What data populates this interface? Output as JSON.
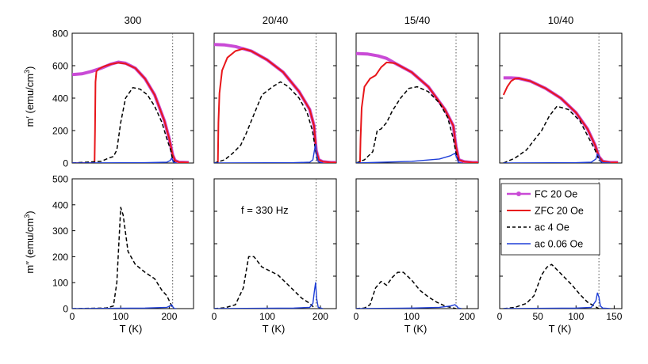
{
  "figure": {
    "top_ylabel": "m′ (emu/cm",
    "top_ylabel_sup": "3",
    "top_ylabel_end": ")",
    "bottom_ylabel": "m′′ (emu/cm",
    "bottom_ylabel_sup": "3",
    "bottom_ylabel_end": ")",
    "xlabel": "T (K)",
    "annotation": "f = 330 Hz"
  },
  "colors": {
    "FC": "#c94ad6",
    "ZFC": "#e8161a",
    "ac4": "#000000",
    "ac006": "#1f3fd8",
    "tc_line": "#555555"
  },
  "legend": [
    {
      "key": "FC",
      "label": "FC 20 Oe",
      "style": "marker-line"
    },
    {
      "key": "ZFC",
      "label": "ZFC 20 Oe",
      "style": "solid"
    },
    {
      "key": "ac4",
      "label": "ac 4 Oe",
      "style": "dashed"
    },
    {
      "key": "ac006",
      "label": "ac 0.06 Oe",
      "style": "solid"
    }
  ],
  "chart_data": [
    {
      "type": "line",
      "title": "300",
      "panel": "m′",
      "xlim": [
        0,
        250
      ],
      "ylim": [
        0,
        800
      ],
      "xticks": [],
      "yticks": [
        0,
        200,
        400,
        600,
        800
      ],
      "tc": 207,
      "series": [
        {
          "key": "FC",
          "x": [
            0,
            20,
            40,
            60,
            80,
            95,
            110,
            130,
            150,
            170,
            190,
            200,
            207,
            212,
            220,
            240
          ],
          "y": [
            545,
            550,
            565,
            585,
            610,
            622,
            615,
            585,
            520,
            420,
            260,
            150,
            50,
            15,
            5,
            3
          ]
        },
        {
          "key": "ZFC",
          "x": [
            0,
            46,
            47,
            48,
            50,
            55,
            65,
            80,
            95,
            110,
            130,
            150,
            170,
            190,
            200,
            207,
            212,
            220,
            240
          ],
          "y": [
            0,
            0,
            200,
            500,
            565,
            580,
            595,
            610,
            618,
            612,
            585,
            520,
            420,
            260,
            150,
            50,
            15,
            5,
            3
          ]
        },
        {
          "key": "ac4",
          "x": [
            0,
            60,
            75,
            85,
            92,
            100,
            110,
            125,
            140,
            155,
            170,
            185,
            195,
            203,
            207,
            212
          ],
          "y": [
            0,
            10,
            30,
            40,
            80,
            250,
            400,
            465,
            455,
            420,
            350,
            250,
            150,
            80,
            20,
            0
          ]
        },
        {
          "key": "ac006",
          "x": [
            0,
            150,
            195,
            202,
            205,
            208,
            210,
            215
          ],
          "y": [
            0,
            2,
            5,
            15,
            30,
            8,
            2,
            0
          ]
        }
      ]
    },
    {
      "type": "line",
      "title": "20/40",
      "panel": "m′",
      "xlim": [
        0,
        230
      ],
      "ylim": [
        0,
        800
      ],
      "xticks": [],
      "yticks": [],
      "tc": 192,
      "series": [
        {
          "key": "FC",
          "x": [
            0,
            20,
            40,
            70,
            100,
            130,
            160,
            180,
            188,
            192,
            197,
            205,
            220,
            230
          ],
          "y": [
            730,
            728,
            718,
            690,
            635,
            560,
            440,
            330,
            230,
            80,
            20,
            8,
            3,
            3
          ]
        },
        {
          "key": "ZFC",
          "x": [
            0,
            7,
            8,
            10,
            15,
            25,
            40,
            55,
            70,
            100,
            130,
            160,
            180,
            188,
            192,
            197,
            205,
            220,
            230
          ],
          "y": [
            0,
            0,
            250,
            430,
            570,
            650,
            690,
            705,
            690,
            635,
            560,
            440,
            330,
            230,
            80,
            20,
            8,
            3,
            3
          ]
        },
        {
          "key": "ac4",
          "x": [
            0,
            20,
            35,
            50,
            60,
            75,
            90,
            110,
            125,
            140,
            160,
            175,
            185,
            190,
            195
          ],
          "y": [
            0,
            20,
            60,
            110,
            180,
            300,
            420,
            470,
            500,
            470,
            400,
            310,
            200,
            100,
            0
          ]
        },
        {
          "key": "ac006",
          "x": [
            0,
            150,
            180,
            186,
            189,
            191,
            193,
            196,
            205
          ],
          "y": [
            0,
            2,
            5,
            20,
            80,
            115,
            50,
            8,
            0
          ]
        }
      ]
    },
    {
      "type": "line",
      "title": "15/40",
      "panel": "m′",
      "xlim": [
        0,
        220
      ],
      "ylim": [
        0,
        800
      ],
      "xticks": [],
      "yticks": [],
      "tc": 180,
      "series": [
        {
          "key": "FC",
          "x": [
            0,
            20,
            40,
            55,
            70,
            100,
            130,
            160,
            175,
            180,
            185,
            195,
            210,
            220
          ],
          "y": [
            675,
            672,
            660,
            645,
            615,
            560,
            470,
            330,
            230,
            100,
            20,
            8,
            3,
            3
          ]
        },
        {
          "key": "ZFC",
          "x": [
            0,
            7,
            8,
            10,
            15,
            25,
            35,
            45,
            55,
            70,
            100,
            130,
            160,
            175,
            180,
            185,
            195,
            210,
            220
          ],
          "y": [
            0,
            0,
            150,
            340,
            470,
            520,
            540,
            590,
            620,
            615,
            560,
            470,
            330,
            230,
            100,
            20,
            8,
            3,
            3
          ]
        },
        {
          "key": "ac4",
          "x": [
            0,
            15,
            30,
            38,
            45,
            55,
            65,
            80,
            95,
            110,
            130,
            150,
            165,
            175,
            180,
            185
          ],
          "y": [
            0,
            20,
            70,
            200,
            210,
            250,
            320,
            400,
            460,
            470,
            440,
            370,
            280,
            150,
            60,
            0
          ]
        },
        {
          "key": "ac006",
          "x": [
            0,
            100,
            150,
            170,
            178,
            181,
            184,
            190
          ],
          "y": [
            0,
            10,
            25,
            45,
            60,
            35,
            5,
            0
          ]
        }
      ]
    },
    {
      "type": "line",
      "title": "10/40",
      "panel": "m′",
      "xlim": [
        0,
        160
      ],
      "ylim": [
        0,
        800
      ],
      "xticks": [],
      "yticks": [],
      "tc": 130,
      "series": [
        {
          "key": "FC",
          "x": [
            5,
            15,
            25,
            40,
            60,
            80,
            100,
            115,
            125,
            130,
            135,
            145,
            155
          ],
          "y": [
            525,
            525,
            522,
            505,
            460,
            400,
            310,
            210,
            110,
            40,
            10,
            3,
            3
          ]
        },
        {
          "key": "ZFC",
          "x": [
            5,
            10,
            15,
            20,
            25,
            40,
            60,
            80,
            100,
            115,
            125,
            130,
            135,
            145,
            155
          ],
          "y": [
            420,
            470,
            505,
            520,
            522,
            505,
            460,
            400,
            310,
            210,
            110,
            40,
            10,
            3,
            3
          ]
        },
        {
          "key": "ac4",
          "x": [
            5,
            20,
            35,
            45,
            55,
            65,
            75,
            90,
            105,
            115,
            125,
            130,
            135
          ],
          "y": [
            0,
            30,
            80,
            140,
            200,
            290,
            350,
            330,
            260,
            170,
            80,
            20,
            0
          ]
        },
        {
          "key": "ac006",
          "x": [
            5,
            100,
            120,
            126,
            128,
            130,
            132,
            135,
            145
          ],
          "y": [
            0,
            2,
            5,
            25,
            55,
            45,
            10,
            2,
            0
          ]
        }
      ]
    },
    {
      "type": "line",
      "title": "",
      "panel": "m′′",
      "xlim": [
        0,
        250
      ],
      "ylim": [
        0,
        500
      ],
      "xticks": [
        0,
        100,
        200
      ],
      "yticks": [
        0,
        100,
        200,
        300,
        400,
        500
      ],
      "tc": 207,
      "series": [
        {
          "key": "ac4",
          "x": [
            0,
            70,
            85,
            92,
            100,
            105,
            115,
            130,
            150,
            170,
            185,
            195,
            205,
            210
          ],
          "y": [
            0,
            2,
            10,
            100,
            390,
            360,
            220,
            170,
            140,
            115,
            70,
            50,
            10,
            0
          ]
        },
        {
          "key": "ac006",
          "x": [
            0,
            150,
            195,
            202,
            205,
            208,
            211,
            215
          ],
          "y": [
            0,
            2,
            5,
            10,
            15,
            5,
            0,
            0
          ]
        }
      ]
    },
    {
      "type": "line",
      "title": "",
      "panel": "m′′",
      "xlim": [
        0,
        230
      ],
      "ylim": [
        0,
        500
      ],
      "xticks": [
        0,
        100,
        200
      ],
      "yticks": [],
      "tc": 192,
      "series": [
        {
          "key": "ac4",
          "x": [
            0,
            20,
            40,
            55,
            65,
            75,
            90,
            105,
            120,
            135,
            150,
            165,
            180,
            190
          ],
          "y": [
            0,
            3,
            15,
            80,
            200,
            200,
            160,
            145,
            130,
            100,
            70,
            40,
            20,
            0
          ]
        },
        {
          "key": "ac006",
          "x": [
            0,
            150,
            180,
            186,
            189,
            191,
            193,
            196,
            205
          ],
          "y": [
            0,
            2,
            5,
            20,
            70,
            100,
            40,
            5,
            0
          ]
        }
      ]
    },
    {
      "type": "line",
      "title": "",
      "panel": "m′′",
      "xlim": [
        0,
        220
      ],
      "ylim": [
        0,
        500
      ],
      "xticks": [
        0,
        100,
        200
      ],
      "yticks": [],
      "tc": 180,
      "series": [
        {
          "key": "ac4",
          "x": [
            0,
            15,
            25,
            35,
            45,
            55,
            65,
            75,
            85,
            100,
            115,
            130,
            145,
            160,
            170,
            180
          ],
          "y": [
            0,
            2,
            15,
            80,
            105,
            90,
            120,
            140,
            140,
            110,
            70,
            45,
            25,
            10,
            5,
            0
          ]
        },
        {
          "key": "ac006",
          "x": [
            0,
            100,
            150,
            170,
            178,
            181,
            184,
            190
          ],
          "y": [
            0,
            2,
            5,
            10,
            15,
            10,
            2,
            0
          ]
        }
      ]
    },
    {
      "type": "line",
      "title": "",
      "panel": "m′′",
      "xlim": [
        0,
        160
      ],
      "ylim": [
        0,
        500
      ],
      "xticks": [
        0,
        50,
        100,
        150
      ],
      "yticks": [],
      "tc": 130,
      "series": [
        {
          "key": "ac4",
          "x": [
            5,
            20,
            35,
            45,
            55,
            62,
            68,
            75,
            85,
            95,
            105,
            115,
            125,
            130
          ],
          "y": [
            0,
            5,
            20,
            50,
            130,
            160,
            170,
            150,
            120,
            90,
            55,
            25,
            8,
            0
          ]
        },
        {
          "key": "ac006",
          "x": [
            5,
            100,
            120,
            126,
            128,
            130,
            132,
            135,
            145
          ],
          "y": [
            0,
            2,
            5,
            30,
            60,
            45,
            10,
            2,
            0
          ]
        }
      ]
    }
  ]
}
